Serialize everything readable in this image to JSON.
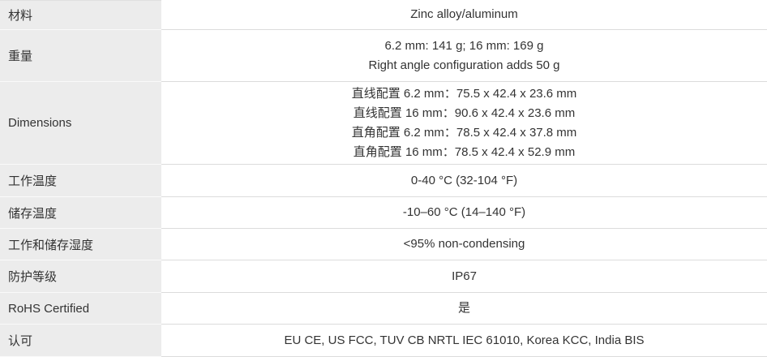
{
  "table": {
    "colors": {
      "label_background": "#ececec",
      "row_border": "#dcdcdc",
      "text": "#333333"
    },
    "rows": [
      {
        "label": "材料",
        "values": [
          "Zinc alloy/aluminum"
        ]
      },
      {
        "label": "重量",
        "values": [
          "6.2 mm: 141 g; 16 mm: 169 g",
          "Right angle configuration adds 50 g"
        ]
      },
      {
        "label": "Dimensions",
        "values": [
          "直线配置 6.2 mm：75.5 x 42.4 x 23.6 mm",
          "直线配置 16 mm：90.6 x 42.4 x 23.6 mm",
          "直角配置 6.2 mm：78.5 x 42.4 x 37.8 mm",
          "直角配置 16 mm：78.5 x 42.4 x 52.9 mm"
        ]
      },
      {
        "label": "工作温度",
        "values": [
          "0-40 °C (32-104 °F)"
        ]
      },
      {
        "label": "储存温度",
        "values": [
          "-10–60 °C (14–140 °F)"
        ]
      },
      {
        "label": "工作和储存湿度",
        "values": [
          "<95% non-condensing"
        ]
      },
      {
        "label": "防护等级",
        "values": [
          "IP67"
        ]
      },
      {
        "label": "RoHS Certified",
        "values": [
          "是"
        ]
      },
      {
        "label": "认可",
        "values": [
          "EU CE, US FCC, TUV CB NRTL IEC 61010, Korea KCC, India BIS"
        ]
      }
    ]
  }
}
